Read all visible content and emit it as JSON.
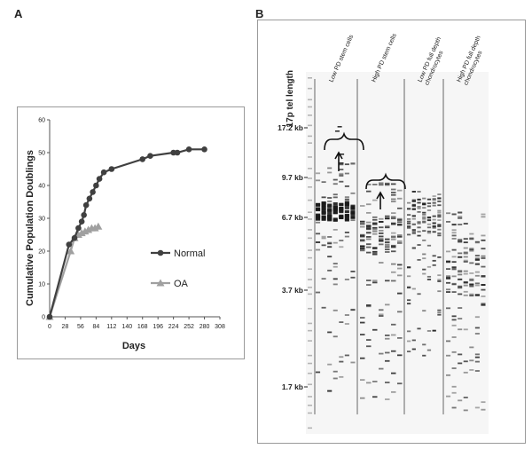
{
  "panel_a": {
    "letter": "A",
    "chart_data": {
      "type": "line",
      "title": "",
      "xlabel": "Days",
      "ylabel": "Cumulative Population Doublings",
      "xlim": [
        0,
        308
      ],
      "ylim": [
        0,
        60
      ],
      "xticks": [
        0,
        28,
        56,
        84,
        112,
        140,
        168,
        196,
        224,
        252,
        280,
        308
      ],
      "yticks": [
        0,
        10,
        20,
        30,
        40,
        50,
        60
      ],
      "grid": false,
      "legend_position": "right",
      "series": [
        {
          "name": "Normal",
          "color": "#404040",
          "marker": "circle",
          "x": [
            0,
            35,
            45,
            52,
            58,
            62,
            66,
            72,
            78,
            84,
            90,
            98,
            112,
            168,
            182,
            224,
            231,
            252,
            280
          ],
          "y": [
            0,
            22,
            24,
            27,
            29,
            31,
            34,
            36,
            38,
            40,
            42,
            44,
            45,
            48,
            49,
            50,
            50,
            51,
            51
          ]
        },
        {
          "name": "OA",
          "color": "#a0a0a0",
          "marker": "triangle",
          "x": [
            0,
            38,
            45,
            52,
            58,
            64,
            70,
            76,
            82,
            88
          ],
          "y": [
            0,
            20,
            24,
            25,
            25.5,
            26,
            26.5,
            27,
            27,
            27.5
          ]
        }
      ]
    }
  },
  "panel_b": {
    "letter": "B",
    "chart_data": {
      "type": "gel",
      "title": "",
      "ylabel": "17p tel length",
      "size_markers": [
        "17.2 kb",
        "9.7 kb",
        "6.7 kb",
        "3.7 kb",
        "1.7 kb"
      ],
      "lanes": [
        "Low PD stem cells",
        "High PD stem cells",
        "Low PD full depth chondrocytes",
        "High PD full depth chondrocytes"
      ]
    }
  }
}
